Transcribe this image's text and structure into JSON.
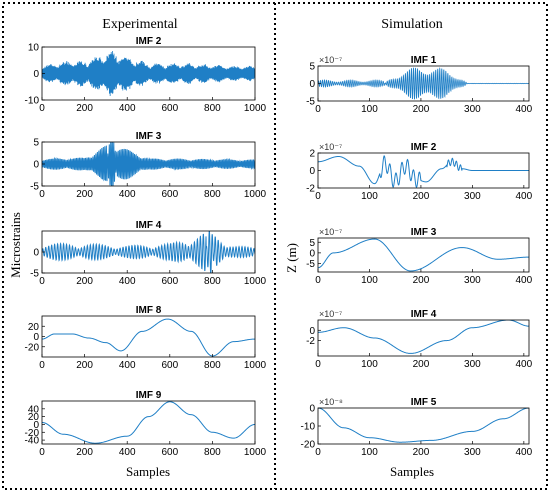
{
  "panels": {
    "left_title": "Experimental",
    "right_title": "Simulation",
    "left_ylabel": "Microstrains",
    "right_ylabel": "Z (m)",
    "left_xlabel": "Samples",
    "right_xlabel": "Samples"
  },
  "chart_data": [
    {
      "type": "line",
      "panel": "experimental",
      "title": "IMF 2",
      "xlim": [
        0,
        1000
      ],
      "ylim": [
        -10,
        10
      ],
      "xticks": [
        0,
        200,
        400,
        600,
        800,
        1000
      ],
      "yticks": [
        10,
        0,
        -10
      ],
      "tick_labels_x": [
        "0",
        "200",
        "400",
        "600",
        "800",
        "1000"
      ],
      "tick_labels_y": [
        "10",
        "0",
        "-10"
      ],
      "signal": "dense oscillation; bursts near 120, 200, 330; peak ~9 near 330",
      "series": [
        {
          "x": [
            0,
            120,
            200,
            330,
            500,
            700,
            900,
            1000
          ],
          "y": [
            3,
            5,
            5,
            9,
            4,
            4,
            3,
            3
          ]
        }
      ],
      "color": "#1f77b4",
      "line_color_hint": "#0072bd"
    },
    {
      "type": "line",
      "panel": "experimental",
      "title": "IMF 3",
      "xlim": [
        0,
        1000
      ],
      "ylim": [
        -5,
        5
      ],
      "xticks": [
        0,
        200,
        400,
        600,
        800,
        1000
      ],
      "yticks": [
        5,
        0,
        -5
      ],
      "tick_labels_x": [
        "0",
        "200",
        "400",
        "600",
        "800",
        "1000"
      ],
      "tick_labels_y": [
        "5",
        "0",
        "-5"
      ],
      "signal": "oscillation; burst near 310-340 reaching ~5",
      "series": [
        {
          "x": [
            0,
            200,
            330,
            500,
            700,
            1000
          ],
          "y": [
            1.2,
            1.5,
            5,
            1.3,
            1.2,
            1
          ]
        }
      ]
    },
    {
      "type": "line",
      "panel": "experimental",
      "title": "IMF 4",
      "xlim": [
        0,
        1000
      ],
      "ylim": [
        -5,
        5
      ],
      "xticks": [
        0,
        200,
        400,
        600,
        800,
        1000
      ],
      "yticks": [
        0,
        -5
      ],
      "tick_labels_x": [
        "0",
        "200",
        "400",
        "600",
        "800",
        "1000"
      ],
      "tick_labels_y": [
        "0",
        "-5"
      ],
      "signal": "wave packets; large spike near 790 reaching ~5",
      "series": [
        {
          "x": [
            0,
            200,
            400,
            600,
            790,
            900,
            1000
          ],
          "y": [
            2,
            2,
            1.5,
            2,
            5,
            1.5,
            1
          ]
        }
      ]
    },
    {
      "type": "line",
      "panel": "experimental",
      "title": "IMF 8",
      "xlim": [
        0,
        1000
      ],
      "ylim": [
        -40,
        40
      ],
      "xticks": [
        0,
        200,
        400,
        600,
        800,
        1000
      ],
      "yticks": [
        20,
        0,
        -20
      ],
      "tick_labels_x": [
        "0",
        "200",
        "400",
        "600",
        "800",
        "1000"
      ],
      "tick_labels_y": [
        "20",
        "0",
        "-20"
      ],
      "series": [
        {
          "x": [
            0,
            60,
            140,
            220,
            300,
            370,
            470,
            590,
            700,
            800,
            900,
            1000
          ],
          "y": [
            -5,
            5,
            5,
            -3,
            -12,
            -28,
            10,
            34,
            10,
            -38,
            -10,
            -5
          ]
        }
      ]
    },
    {
      "type": "line",
      "panel": "experimental",
      "title": "IMF 9",
      "xlim": [
        0,
        1000
      ],
      "ylim": [
        -50,
        60
      ],
      "xticks": [
        0,
        200,
        400,
        600,
        800,
        1000
      ],
      "yticks": [
        40,
        20,
        0,
        -20,
        -40
      ],
      "tick_labels_x": [
        "0",
        "200",
        "400",
        "600",
        "800",
        "1000"
      ],
      "tick_labels_y": [
        "40",
        "20",
        "0",
        "-20",
        "-40"
      ],
      "series": [
        {
          "x": [
            0,
            100,
            250,
            400,
            500,
            600,
            700,
            800,
            900,
            1000
          ],
          "y": [
            5,
            -25,
            -48,
            -30,
            20,
            58,
            25,
            -20,
            -35,
            0
          ]
        }
      ]
    },
    {
      "type": "line",
      "panel": "simulation",
      "title": "IMF 1",
      "exponent": "×10⁻⁷",
      "xlim": [
        0,
        410
      ],
      "ylim": [
        -5,
        5
      ],
      "xticks": [
        0,
        100,
        200,
        300,
        400
      ],
      "yticks": [
        5,
        0,
        -5
      ],
      "tick_labels_x": [
        "0",
        "100",
        "200",
        "300",
        "400"
      ],
      "tick_labels_y": [
        "5",
        "0",
        "-5"
      ],
      "signal": "small ripples 0-130, large burst 140-280 reaching ~5, flat after 290",
      "series": [
        {
          "x": [
            0,
            60,
            130,
            160,
            220,
            280,
            300,
            410
          ],
          "y": [
            0.8,
            0.5,
            0.8,
            3,
            5,
            2,
            0,
            0
          ]
        }
      ]
    },
    {
      "type": "line",
      "panel": "simulation",
      "title": "IMF 2",
      "exponent": "×10⁻⁷",
      "xlim": [
        0,
        410
      ],
      "ylim": [
        -2,
        2
      ],
      "xticks": [
        0,
        100,
        200,
        300,
        400
      ],
      "yticks": [
        2,
        0,
        -2
      ],
      "tick_labels_x": [
        "0",
        "100",
        "200",
        "300",
        "400"
      ],
      "tick_labels_y": [
        "2",
        "0",
        "-2"
      ],
      "series": [
        {
          "x": [
            0,
            40,
            80,
            110,
            130,
            150,
            170,
            190,
            210,
            240,
            260,
            280,
            300,
            410
          ],
          "y": [
            1,
            1.6,
            0.5,
            -1.5,
            0.8,
            -1.2,
            0.5,
            -1.0,
            -1.3,
            0.2,
            1.0,
            0.2,
            0,
            0
          ]
        }
      ]
    },
    {
      "type": "line",
      "panel": "simulation",
      "title": "IMF 3",
      "exponent": "×10⁻⁷",
      "xlim": [
        0,
        410
      ],
      "ylim": [
        -9,
        7
      ],
      "xticks": [
        0,
        100,
        200,
        300,
        400
      ],
      "yticks": [
        5,
        0,
        -5
      ],
      "tick_labels_x": [
        "0",
        "100",
        "200",
        "300",
        "400"
      ],
      "tick_labels_y": [
        "5",
        "0",
        "-5"
      ],
      "series": [
        {
          "x": [
            0,
            30,
            110,
            180,
            280,
            350,
            410
          ],
          "y": [
            -7,
            0,
            6.5,
            -8.5,
            2.5,
            -3,
            -2
          ]
        }
      ]
    },
    {
      "type": "line",
      "panel": "simulation",
      "title": "IMF 4",
      "exponent": "×10⁻⁷",
      "xlim": [
        0,
        410
      ],
      "ylim": [
        -5,
        2
      ],
      "xticks": [
        0,
        100,
        200,
        300,
        400
      ],
      "yticks": [
        0,
        -2
      ],
      "tick_labels_x": [
        "0",
        "100",
        "200",
        "300",
        "400"
      ],
      "tick_labels_y": [
        "0",
        "-2"
      ],
      "series": [
        {
          "x": [
            0,
            50,
            110,
            180,
            250,
            300,
            370,
            410
          ],
          "y": [
            -0.4,
            0.5,
            -1.5,
            -4.5,
            -2,
            0.5,
            2,
            0.8
          ]
        }
      ]
    },
    {
      "type": "line",
      "panel": "simulation",
      "title": "IMF 5",
      "exponent": "×10⁻⁸",
      "xlim": [
        0,
        410
      ],
      "ylim": [
        -20,
        0
      ],
      "xticks": [
        0,
        100,
        200,
        300,
        400
      ],
      "yticks": [
        0,
        -10,
        -20
      ],
      "tick_labels_x": [
        "0",
        "100",
        "200",
        "300",
        "400"
      ],
      "tick_labels_y": [
        "0",
        "-10",
        "-20"
      ],
      "series": [
        {
          "x": [
            0,
            50,
            100,
            160,
            220,
            300,
            360,
            410
          ],
          "y": [
            0,
            -11,
            -16.5,
            -19,
            -18,
            -13,
            -6,
            0
          ]
        }
      ]
    }
  ]
}
